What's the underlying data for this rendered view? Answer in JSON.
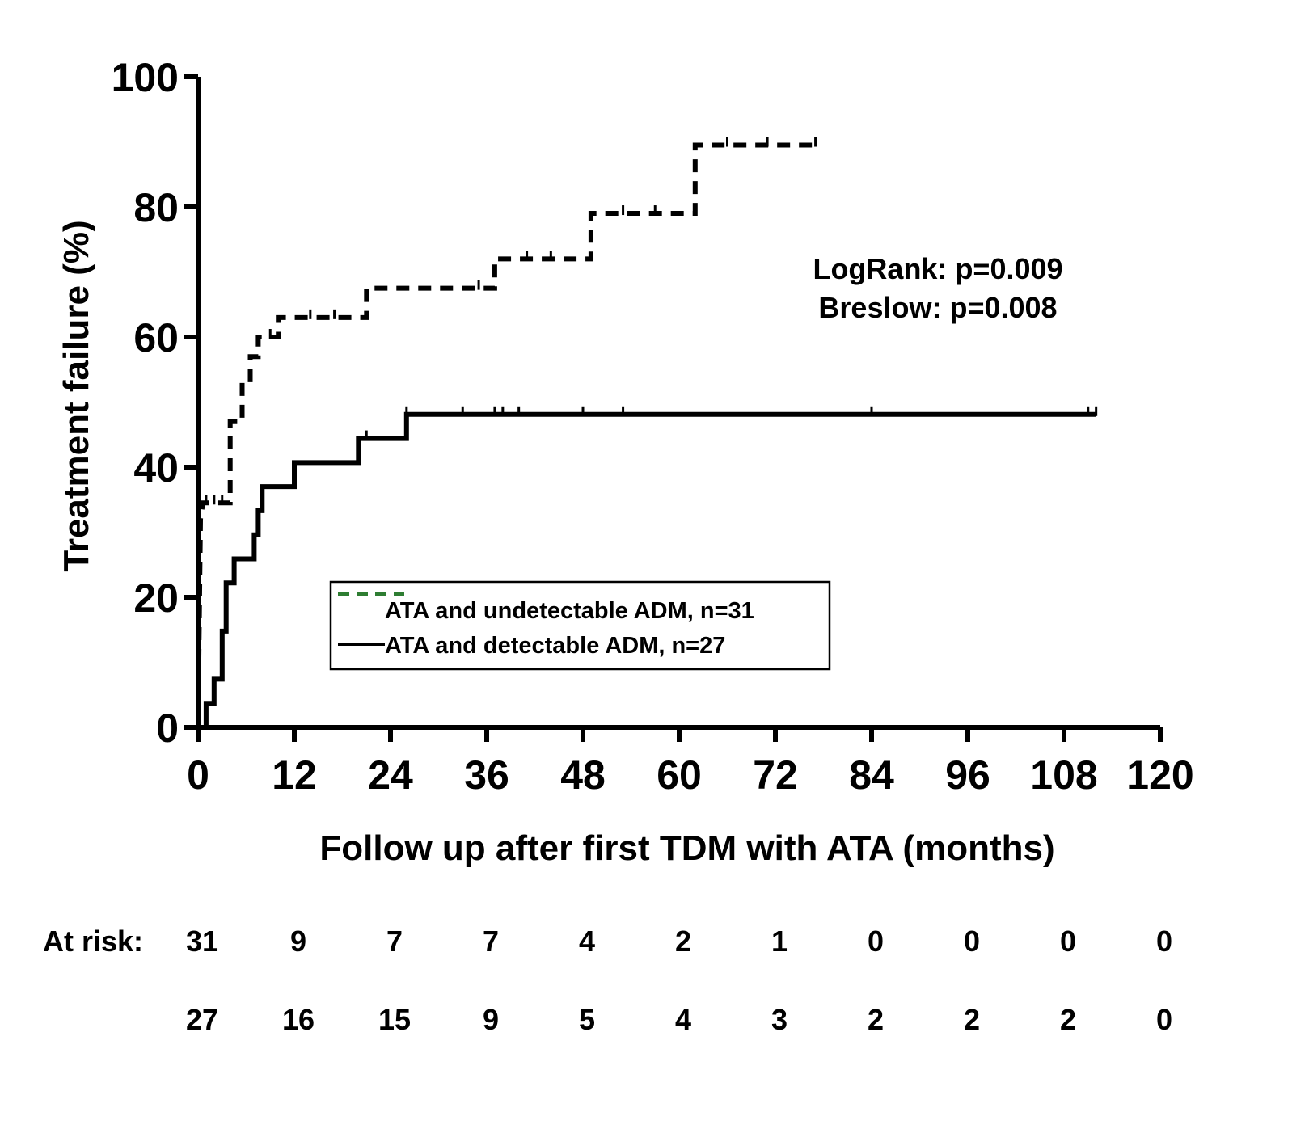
{
  "chart_data": {
    "type": "line",
    "subtype": "kaplan-meier step curves",
    "title": "",
    "xlabel": "Follow up after first TDM with ATA (months)",
    "ylabel": "Treatment failure (%)",
    "xlim": [
      0,
      120
    ],
    "ylim": [
      0,
      100
    ],
    "x_ticks": [
      0,
      12,
      24,
      36,
      48,
      60,
      72,
      84,
      96,
      108,
      120
    ],
    "y_ticks": [
      0,
      20,
      40,
      60,
      80,
      100
    ],
    "grid": false,
    "series": [
      {
        "name": "ATA and undetectable ADM, n=31",
        "style": "dashed",
        "color": "#000000",
        "legend_swatch_color": "#2e7d32",
        "steps": [
          [
            0,
            0
          ],
          [
            0.3,
            32
          ],
          [
            0.6,
            34.5
          ],
          [
            4,
            34.5
          ],
          [
            4,
            47
          ],
          [
            5.5,
            47
          ],
          [
            5.5,
            53
          ],
          [
            6.5,
            53
          ],
          [
            6.5,
            57
          ],
          [
            7.5,
            57
          ],
          [
            7.5,
            60
          ],
          [
            10,
            60
          ],
          [
            10,
            63
          ],
          [
            21,
            63
          ],
          [
            21,
            67.5
          ],
          [
            37,
            67.5
          ],
          [
            37,
            72
          ],
          [
            49,
            72
          ],
          [
            49,
            79
          ],
          [
            62,
            79
          ],
          [
            62,
            89.5
          ],
          [
            77,
            89.5
          ]
        ],
        "censor_x": [
          1,
          2,
          3,
          9,
          14,
          17,
          35,
          41,
          44,
          53,
          57,
          66,
          71,
          77
        ]
      },
      {
        "name": "ATA and detectable ADM, n=27",
        "style": "solid",
        "color": "#000000",
        "steps": [
          [
            0,
            0
          ],
          [
            1,
            0
          ],
          [
            1,
            3.7
          ],
          [
            2,
            3.7
          ],
          [
            2,
            7.4
          ],
          [
            3,
            7.4
          ],
          [
            3,
            14.8
          ],
          [
            3.5,
            14.8
          ],
          [
            3.5,
            22.2
          ],
          [
            4.5,
            22.2
          ],
          [
            4.5,
            25.9
          ],
          [
            7,
            25.9
          ],
          [
            7,
            29.6
          ],
          [
            7.5,
            29.6
          ],
          [
            7.5,
            33.3
          ],
          [
            8,
            33.3
          ],
          [
            8,
            37
          ],
          [
            12,
            37
          ],
          [
            12,
            40.7
          ],
          [
            20,
            40.7
          ],
          [
            20,
            44.4
          ],
          [
            26,
            44.4
          ],
          [
            26,
            48.1
          ],
          [
            112,
            48.1
          ]
        ],
        "censor_x": [
          21,
          26,
          33,
          37,
          38,
          40,
          48,
          53,
          84,
          111,
          112
        ]
      }
    ],
    "legend": {
      "position": "bottom-center",
      "entries": [
        "ATA and undetectable ADM, n=31",
        "ATA and detectable ADM, n=27"
      ]
    },
    "annotations": [
      "LogRank: p=0.009",
      "Breslow: p=0.008"
    ],
    "at_risk": {
      "label": "At risk:",
      "times": [
        0,
        12,
        24,
        36,
        48,
        60,
        72,
        84,
        96,
        108,
        120
      ],
      "rows": [
        [
          31,
          9,
          7,
          7,
          4,
          2,
          1,
          0,
          0,
          0,
          0
        ],
        [
          27,
          16,
          15,
          9,
          5,
          4,
          3,
          2,
          2,
          2,
          0
        ]
      ]
    }
  }
}
